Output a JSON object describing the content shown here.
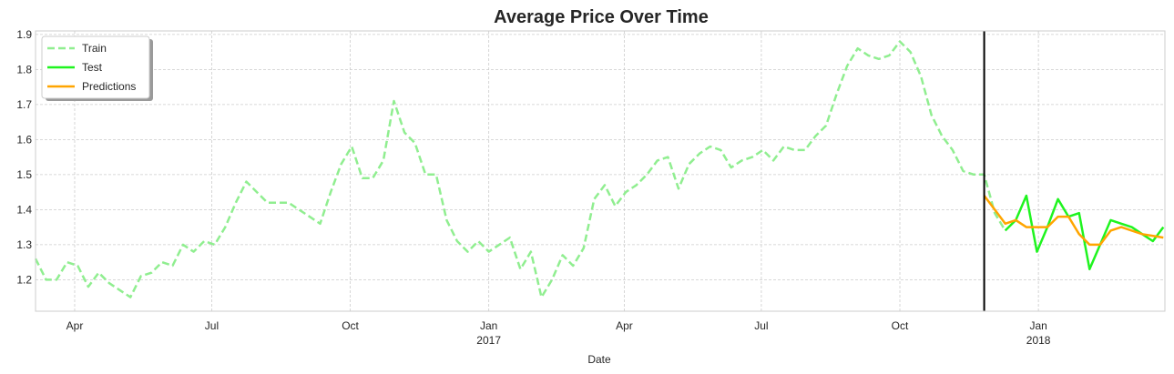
{
  "chart_data": {
    "type": "line",
    "title": "Average Price Over Time",
    "xlabel": "Date",
    "ylabel": "",
    "x_range": [
      "2016-03-06",
      "2018-03-26"
    ],
    "ylim": [
      1.11,
      1.91
    ],
    "y_ticks": [
      1.2,
      1.3,
      1.4,
      1.5,
      1.6,
      1.7,
      1.8,
      1.9
    ],
    "x_ticks": [
      {
        "date": "2016-04-01",
        "label": "Apr",
        "sublabel": ""
      },
      {
        "date": "2016-07-01",
        "label": "Jul",
        "sublabel": ""
      },
      {
        "date": "2016-10-01",
        "label": "Oct",
        "sublabel": ""
      },
      {
        "date": "2017-01-01",
        "label": "Jan",
        "sublabel": "2017"
      },
      {
        "date": "2017-04-01",
        "label": "Apr",
        "sublabel": ""
      },
      {
        "date": "2017-07-01",
        "label": "Jul",
        "sublabel": ""
      },
      {
        "date": "2017-10-01",
        "label": "Oct",
        "sublabel": ""
      },
      {
        "date": "2018-01-01",
        "label": "Jan",
        "sublabel": "2018"
      }
    ],
    "grid": true,
    "legend_position": "top-left",
    "split_line_date": "2017-11-26",
    "series": [
      {
        "name": "Train",
        "color": "#90ee90",
        "style": "dashed",
        "points": [
          [
            "2016-03-06",
            1.26
          ],
          [
            "2016-03-13",
            1.2
          ],
          [
            "2016-03-20",
            1.2
          ],
          [
            "2016-03-27",
            1.25
          ],
          [
            "2016-04-03",
            1.24
          ],
          [
            "2016-04-10",
            1.18
          ],
          [
            "2016-04-17",
            1.22
          ],
          [
            "2016-04-24",
            1.19
          ],
          [
            "2016-05-01",
            1.17
          ],
          [
            "2016-05-08",
            1.15
          ],
          [
            "2016-05-15",
            1.21
          ],
          [
            "2016-05-22",
            1.22
          ],
          [
            "2016-05-29",
            1.25
          ],
          [
            "2016-06-05",
            1.24
          ],
          [
            "2016-06-12",
            1.3
          ],
          [
            "2016-06-19",
            1.28
          ],
          [
            "2016-06-26",
            1.31
          ],
          [
            "2016-07-03",
            1.3
          ],
          [
            "2016-07-10",
            1.35
          ],
          [
            "2016-07-17",
            1.42
          ],
          [
            "2016-07-24",
            1.48
          ],
          [
            "2016-07-31",
            1.45
          ],
          [
            "2016-08-07",
            1.42
          ],
          [
            "2016-08-14",
            1.42
          ],
          [
            "2016-08-21",
            1.42
          ],
          [
            "2016-08-28",
            1.4
          ],
          [
            "2016-09-04",
            1.38
          ],
          [
            "2016-09-11",
            1.36
          ],
          [
            "2016-09-18",
            1.45
          ],
          [
            "2016-09-25",
            1.53
          ],
          [
            "2016-10-02",
            1.58
          ],
          [
            "2016-10-09",
            1.49
          ],
          [
            "2016-10-16",
            1.49
          ],
          [
            "2016-10-23",
            1.54
          ],
          [
            "2016-10-30",
            1.71
          ],
          [
            "2016-11-06",
            1.62
          ],
          [
            "2016-11-13",
            1.59
          ],
          [
            "2016-11-20",
            1.5
          ],
          [
            "2016-11-27",
            1.5
          ],
          [
            "2016-12-04",
            1.37
          ],
          [
            "2016-12-11",
            1.31
          ],
          [
            "2016-12-18",
            1.28
          ],
          [
            "2016-12-25",
            1.31
          ],
          [
            "2017-01-01",
            1.28
          ],
          [
            "2017-01-08",
            1.3
          ],
          [
            "2017-01-15",
            1.32
          ],
          [
            "2017-01-22",
            1.23
          ],
          [
            "2017-01-29",
            1.28
          ],
          [
            "2017-02-05",
            1.15
          ],
          [
            "2017-02-12",
            1.2
          ],
          [
            "2017-02-19",
            1.27
          ],
          [
            "2017-02-26",
            1.24
          ],
          [
            "2017-03-05",
            1.29
          ],
          [
            "2017-03-12",
            1.43
          ],
          [
            "2017-03-19",
            1.47
          ],
          [
            "2017-03-26",
            1.41
          ],
          [
            "2017-04-02",
            1.45
          ],
          [
            "2017-04-09",
            1.47
          ],
          [
            "2017-04-16",
            1.5
          ],
          [
            "2017-04-23",
            1.54
          ],
          [
            "2017-04-30",
            1.55
          ],
          [
            "2017-05-07",
            1.46
          ],
          [
            "2017-05-14",
            1.53
          ],
          [
            "2017-05-21",
            1.56
          ],
          [
            "2017-05-28",
            1.58
          ],
          [
            "2017-06-04",
            1.57
          ],
          [
            "2017-06-11",
            1.52
          ],
          [
            "2017-06-18",
            1.54
          ],
          [
            "2017-06-25",
            1.55
          ],
          [
            "2017-07-02",
            1.57
          ],
          [
            "2017-07-09",
            1.54
          ],
          [
            "2017-07-16",
            1.58
          ],
          [
            "2017-07-23",
            1.57
          ],
          [
            "2017-07-30",
            1.57
          ],
          [
            "2017-08-06",
            1.61
          ],
          [
            "2017-08-13",
            1.64
          ],
          [
            "2017-08-20",
            1.73
          ],
          [
            "2017-08-27",
            1.81
          ],
          [
            "2017-09-03",
            1.86
          ],
          [
            "2017-09-10",
            1.84
          ],
          [
            "2017-09-17",
            1.83
          ],
          [
            "2017-09-24",
            1.84
          ],
          [
            "2017-10-01",
            1.88
          ],
          [
            "2017-10-08",
            1.85
          ],
          [
            "2017-10-15",
            1.78
          ],
          [
            "2017-10-22",
            1.67
          ],
          [
            "2017-10-29",
            1.61
          ],
          [
            "2017-11-05",
            1.57
          ],
          [
            "2017-11-12",
            1.51
          ],
          [
            "2017-11-19",
            1.5
          ],
          [
            "2017-11-26",
            1.5
          ],
          [
            "2017-12-03",
            1.39
          ],
          [
            "2017-12-10",
            1.34
          ]
        ]
      },
      {
        "name": "Test",
        "color": "#1ff41f",
        "style": "solid",
        "points": [
          [
            "2017-12-10",
            1.34
          ],
          [
            "2017-12-17",
            1.37
          ],
          [
            "2017-12-24",
            1.44
          ],
          [
            "2017-12-31",
            1.28
          ],
          [
            "2018-01-07",
            1.35
          ],
          [
            "2018-01-14",
            1.43
          ],
          [
            "2018-01-21",
            1.38
          ],
          [
            "2018-01-28",
            1.39
          ],
          [
            "2018-02-04",
            1.23
          ],
          [
            "2018-02-11",
            1.3
          ],
          [
            "2018-02-18",
            1.37
          ],
          [
            "2018-02-25",
            1.36
          ],
          [
            "2018-03-04",
            1.35
          ],
          [
            "2018-03-11",
            1.33
          ],
          [
            "2018-03-18",
            1.31
          ],
          [
            "2018-03-25",
            1.35
          ]
        ]
      },
      {
        "name": "Predictions",
        "color": "#ffa500",
        "style": "solid",
        "points": [
          [
            "2017-11-26",
            1.44
          ],
          [
            "2017-12-03",
            1.4
          ],
          [
            "2017-12-10",
            1.36
          ],
          [
            "2017-12-17",
            1.37
          ],
          [
            "2017-12-24",
            1.35
          ],
          [
            "2017-12-31",
            1.35
          ],
          [
            "2018-01-07",
            1.35
          ],
          [
            "2018-01-14",
            1.38
          ],
          [
            "2018-01-21",
            1.38
          ],
          [
            "2018-01-28",
            1.33
          ],
          [
            "2018-02-04",
            1.3
          ],
          [
            "2018-02-11",
            1.3
          ],
          [
            "2018-02-18",
            1.34
          ],
          [
            "2018-02-25",
            1.35
          ],
          [
            "2018-03-04",
            1.34
          ],
          [
            "2018-03-11",
            1.33
          ],
          [
            "2018-03-25",
            1.32
          ]
        ]
      }
    ]
  }
}
